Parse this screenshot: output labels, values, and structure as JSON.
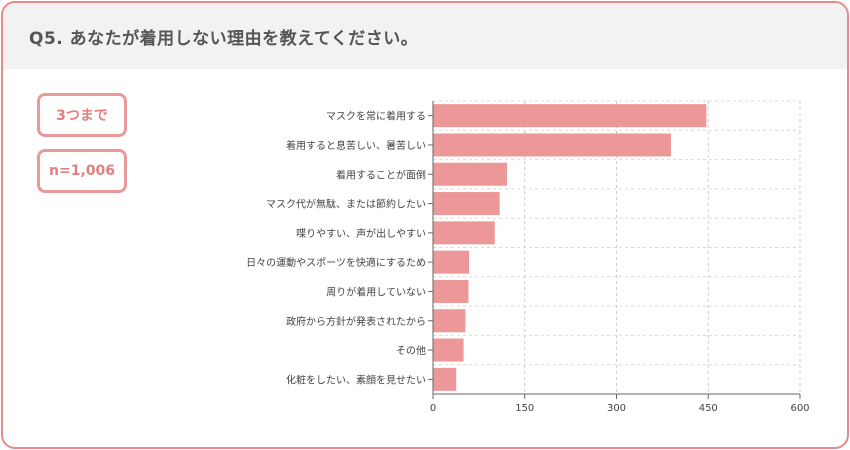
{
  "header": {
    "question": "Q5. あなたが着用しない理由を教えてください。"
  },
  "badges": {
    "limit": "3つまで",
    "sample": "n=1,006"
  },
  "colors": {
    "bar": "#ed9898",
    "border": "#e8898a",
    "header_bg": "#f2f2f2"
  },
  "chart_data": {
    "type": "bar",
    "orientation": "horizontal",
    "categories": [
      "マスクを常に着用する",
      "着用すると息苦しい、暑苦しい",
      "着用することが面倒",
      "マスク代が無駄、または節約したい",
      "喋りやすい、声が出しやすい",
      "日々の運動やスポーツを快適にするため",
      "周りが着用していない",
      "政府から方針が発表されたから",
      "その他",
      "化粧をしたい、素顔を見せたい"
    ],
    "values": [
      447,
      389,
      121,
      109,
      101,
      59,
      58,
      53,
      50,
      38
    ],
    "xlim": [
      0,
      600
    ],
    "xticks": [
      0,
      150,
      300,
      450,
      600
    ],
    "grid": true
  }
}
